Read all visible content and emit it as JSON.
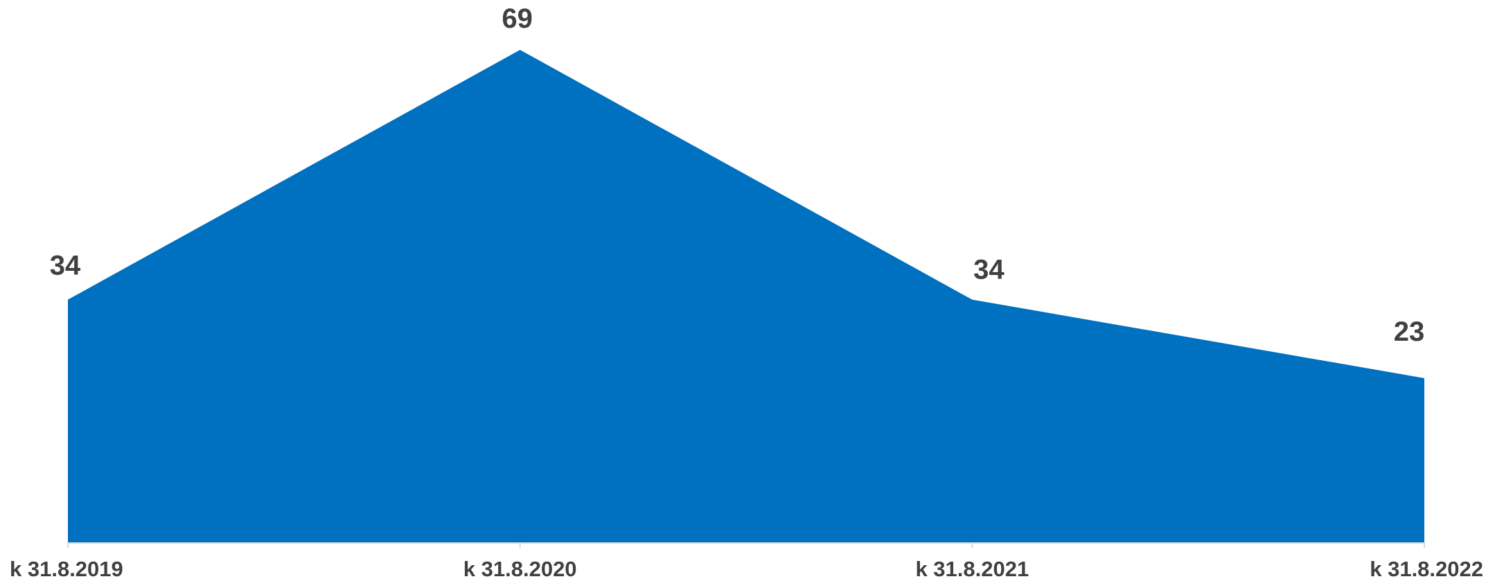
{
  "chart_data": {
    "type": "area",
    "categories": [
      "k 31.8.2019",
      "k 31.8.2020",
      "k 31.8.2021",
      "k 31.8.2022"
    ],
    "series": [
      {
        "values": [
          34,
          69,
          34,
          23
        ],
        "color": "#0070c0"
      }
    ],
    "ylim": [
      0,
      69
    ],
    "grid": false,
    "legend": "none",
    "data_labels": true,
    "axis_color": "#d9d9d9",
    "label_color": "#404040"
  }
}
